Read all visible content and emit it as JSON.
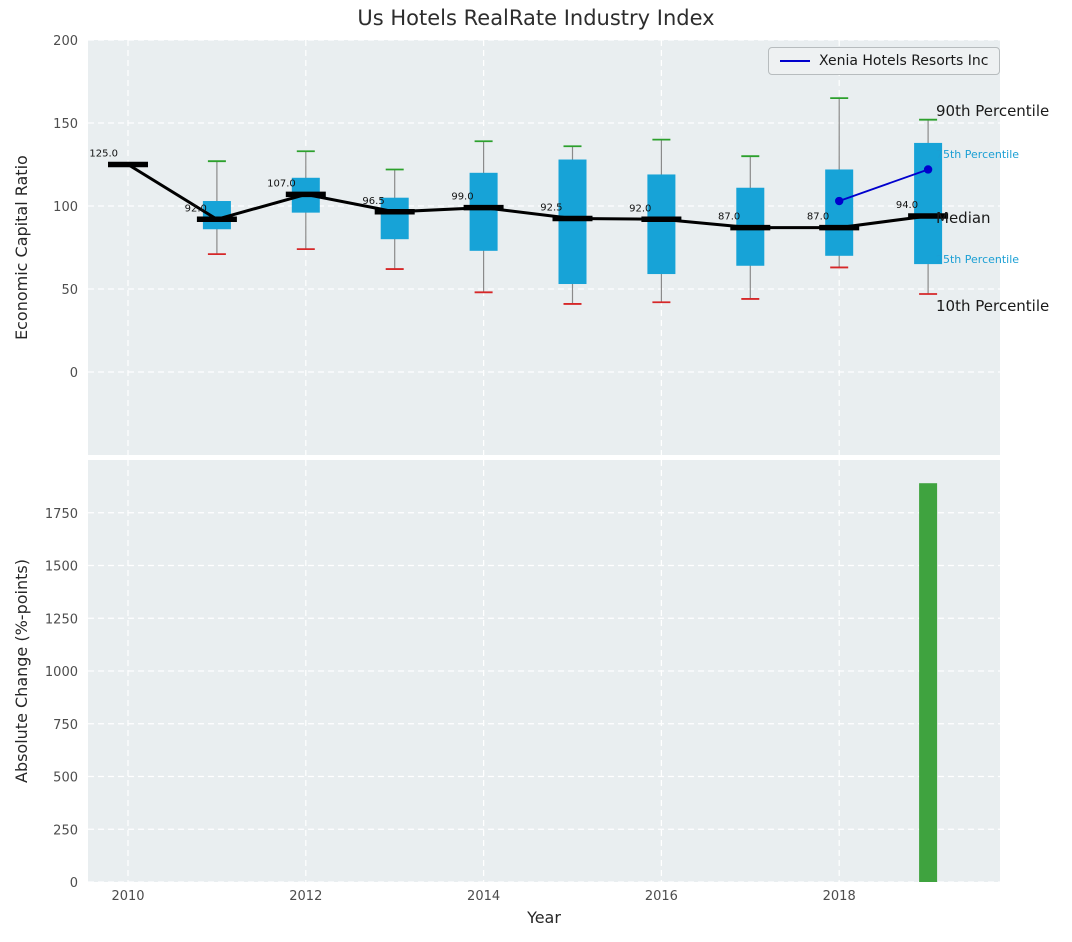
{
  "title": "Us Hotels RealRate Industry Index",
  "legend": {
    "label": "Xenia Hotels Resorts Inc",
    "position": "upper right"
  },
  "annotations": {
    "p90": {
      "text": "90th Percentile",
      "value": 157,
      "accent": false
    },
    "p75": {
      "text": "75th Percentile",
      "value": 131,
      "accent": true
    },
    "median": {
      "text": "Median",
      "value": 93,
      "accent": false
    },
    "p25": {
      "text": "25th Percentile",
      "value": 68,
      "accent": true
    },
    "p10": {
      "text": "10th Percentile",
      "value": 40,
      "accent": false
    }
  },
  "colors": {
    "box": "#17a3d7",
    "median": "#000000",
    "whisker": "#8a8a8a",
    "cap_top": "#2ca02c",
    "cap_bottom": "#d62728",
    "series_line": "#0000cd",
    "bar": "#3fa33f",
    "axes_bg": "#e9eef0",
    "grid": "#ffffff",
    "annotation_accent": "#1b9fd4",
    "tick_label": "#4d4d4d"
  },
  "chart_data": [
    {
      "type": "boxplot",
      "title": "Us Hotels RealRate Industry Index",
      "xlabel": "",
      "ylabel": "Economic Capital Ratio",
      "ylim": [
        -50,
        200
      ],
      "yticks": [
        0,
        50,
        100,
        150,
        200
      ],
      "xticks": [
        2010,
        2012,
        2014,
        2016,
        2018
      ],
      "xtick_labels": [
        "2010",
        "2012",
        "2014",
        "2016",
        "2018"
      ],
      "xlim": [
        2009.55,
        2019.8
      ],
      "grid": "white-dashed",
      "legend_position": "upper right",
      "years": [
        2010,
        2011,
        2012,
        2013,
        2014,
        2015,
        2016,
        2017,
        2018,
        2019
      ],
      "median": [
        125,
        92,
        107,
        96.5,
        99,
        92.5,
        92,
        87,
        87,
        94
      ],
      "median_labels": [
        "125.0",
        "92.0",
        "107.0",
        "96.5",
        "99.0",
        "92.5",
        "92.0",
        "87.0",
        "87.0",
        "94.0"
      ],
      "q1": [
        null,
        86,
        96,
        80,
        73,
        53,
        59,
        64,
        70,
        65
      ],
      "q3": [
        null,
        103,
        117,
        105,
        120,
        128,
        119,
        111,
        122,
        138
      ],
      "p10": [
        null,
        71,
        74,
        62,
        48,
        41,
        42,
        44,
        63,
        47
      ],
      "p90": [
        null,
        127,
        133,
        122,
        139,
        136,
        140,
        130,
        165,
        152
      ],
      "series": [
        {
          "name": "Xenia Hotels Resorts Inc",
          "x": [
            2018,
            2019
          ],
          "y": [
            103,
            122
          ]
        }
      ]
    },
    {
      "type": "bar",
      "xlabel": "Year",
      "ylabel": "Absolute Change (%-points)",
      "ylim": [
        0,
        2000
      ],
      "yticks": [
        0,
        250,
        500,
        750,
        1000,
        1250,
        1500,
        1750
      ],
      "categories": [
        2019
      ],
      "values": [
        1890
      ]
    }
  ]
}
